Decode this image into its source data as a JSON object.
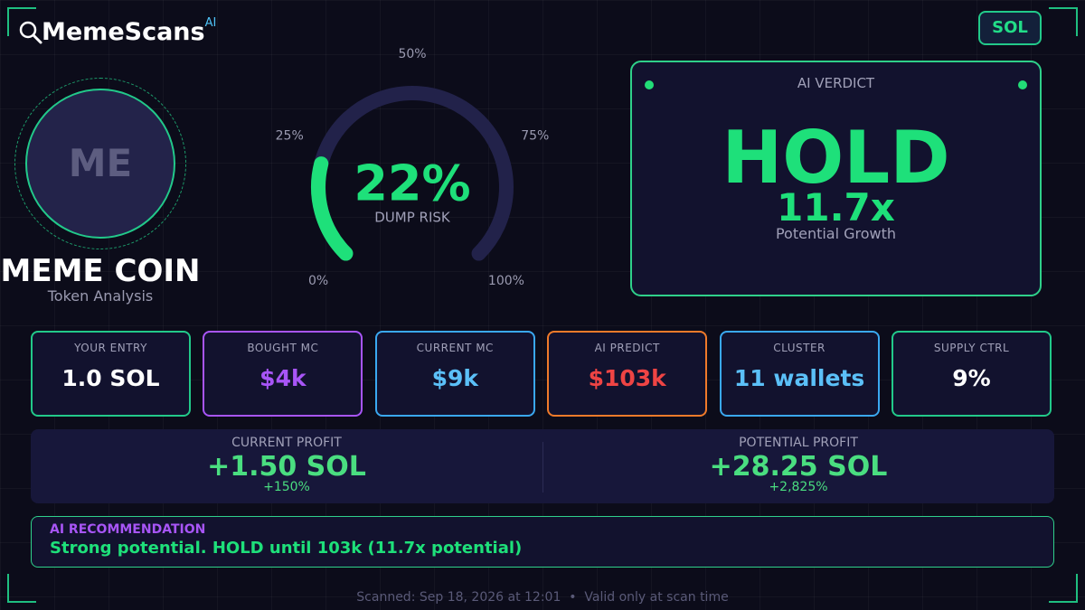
{
  "header": {
    "brand": "MemeScans",
    "brand_sup": "AI",
    "network": "SOL"
  },
  "token": {
    "avatar": "ME",
    "name": "MEME COIN",
    "subtitle": "Token Analysis"
  },
  "gauge": {
    "value": 22,
    "value_label": "22%",
    "label": "DUMP RISK",
    "ticks": [
      {
        "value": 0,
        "label": "0%"
      },
      {
        "value": 25,
        "label": "25%"
      },
      {
        "value": 50,
        "label": "50%"
      },
      {
        "value": 75,
        "label": "75%"
      },
      {
        "value": 100,
        "label": "100%"
      }
    ]
  },
  "verdict": {
    "title": "AI VERDICT",
    "action": "HOLD",
    "multiple": "11.7x",
    "multiple_label": "Potential Growth"
  },
  "stats": [
    {
      "label": "YOUR ENTRY",
      "value": "1.0 SOL"
    },
    {
      "label": "BOUGHT MC",
      "value": "$4k"
    },
    {
      "label": "CURRENT MC",
      "value": "$9k"
    },
    {
      "label": "AI PREDICT",
      "value": "$103k"
    },
    {
      "label": "CLUSTER",
      "value": "11 wallets"
    },
    {
      "label": "SUPPLY CTRL",
      "value": "9%"
    }
  ],
  "profit": [
    {
      "label": "CURRENT PROFIT",
      "value": "+1.50 SOL",
      "percent": "+150%"
    },
    {
      "label": "POTENTIAL PROFIT",
      "value": "+28.25 SOL",
      "percent": "+2,825%"
    }
  ],
  "recommendation": {
    "title": "AI RECOMMENDATION",
    "text": "Strong potential. HOLD until 103k (11.7x potential)"
  },
  "footer": "Scanned: Sep 18, 2026 at 12:01  •  Valid only at scan time"
}
